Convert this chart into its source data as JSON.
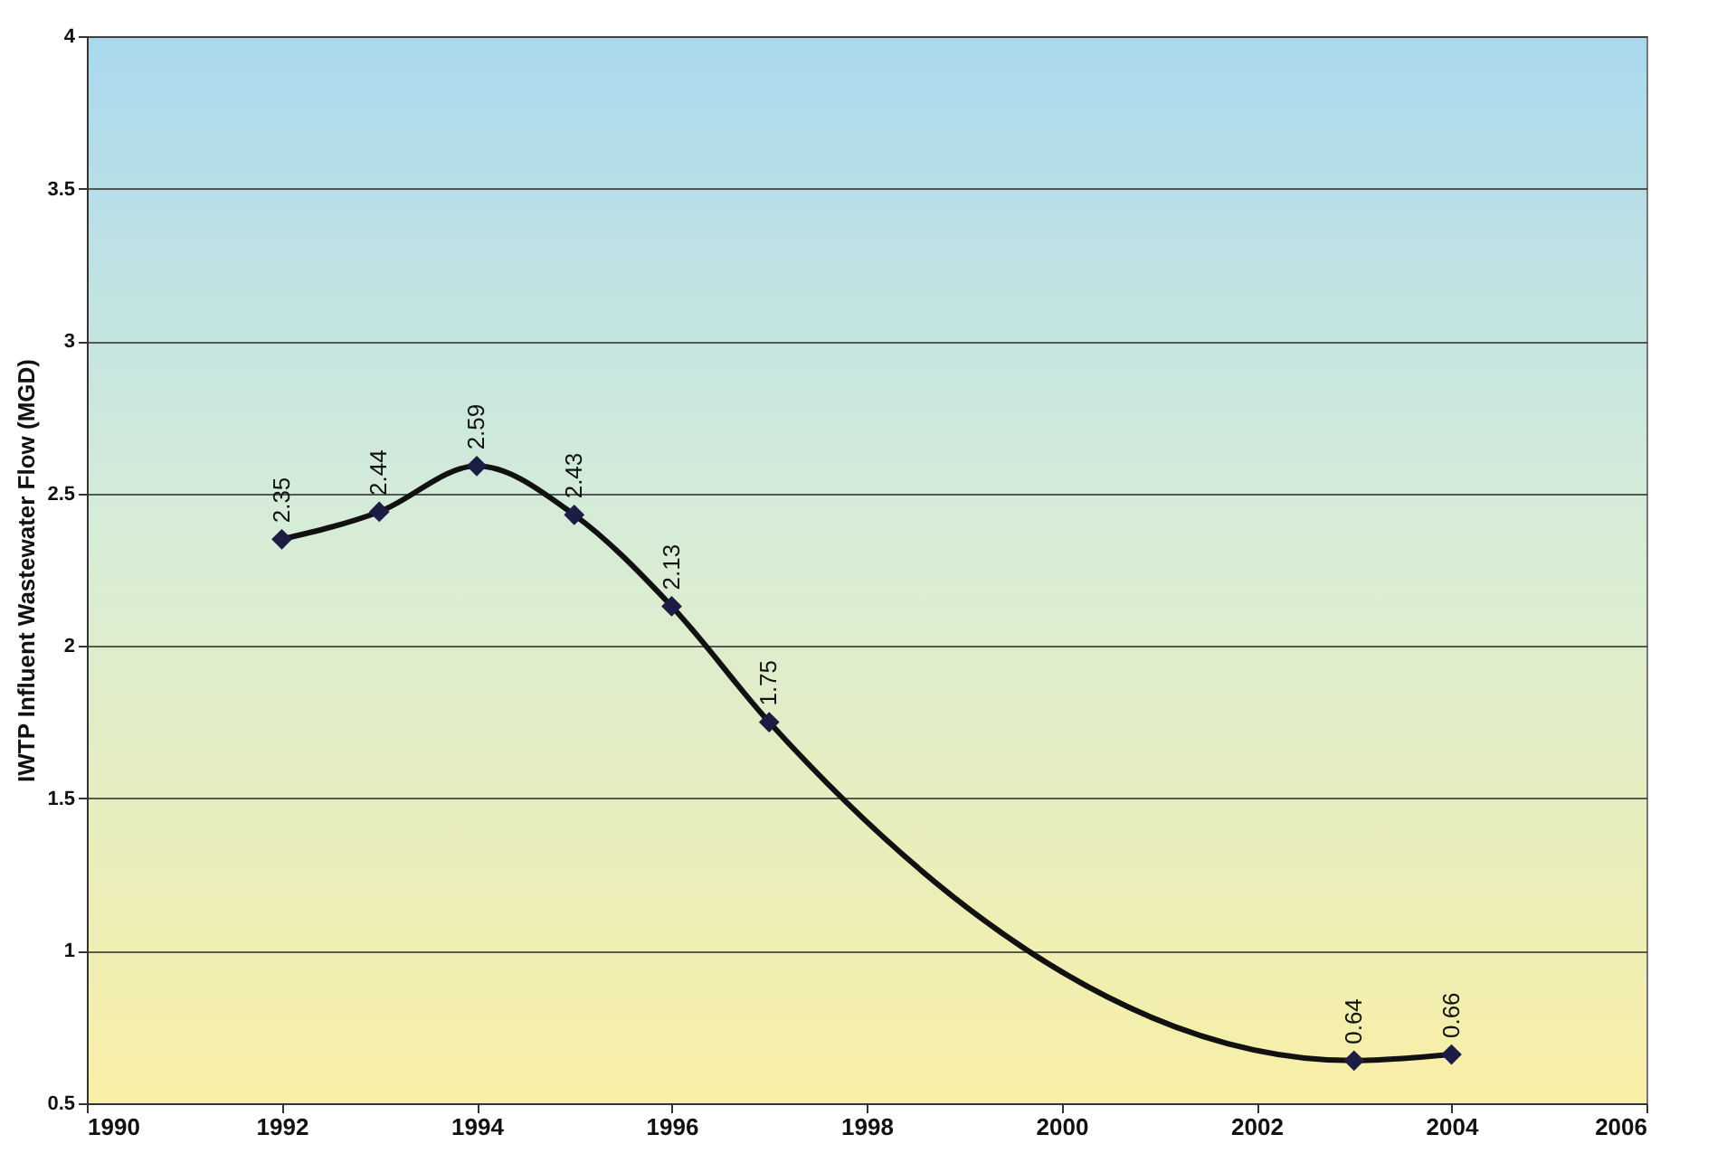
{
  "chart_data": {
    "type": "line",
    "ylabel": "IWTP Influent Wastewater Flow (MGD)",
    "x": [
      1992,
      1993,
      1994,
      1995,
      1996,
      1997,
      2003,
      2004
    ],
    "series": [
      {
        "color": "#1c1c45",
        "values": [
          2.35,
          2.44,
          2.59,
          2.43,
          2.13,
          1.75,
          0.64,
          0.66
        ]
      }
    ],
    "xlim": [
      1990,
      2006
    ],
    "xticks": [
      1990,
      1992,
      1994,
      1996,
      1998,
      2000,
      2002,
      2004,
      2006
    ],
    "ylim": [
      0.5,
      4
    ],
    "yticks": [
      0.5,
      1,
      1.5,
      2,
      2.5,
      3,
      3.5,
      4
    ],
    "grid": "y",
    "marker": "diamond",
    "line_style": "solid",
    "data_labels": true,
    "legend": false
  }
}
